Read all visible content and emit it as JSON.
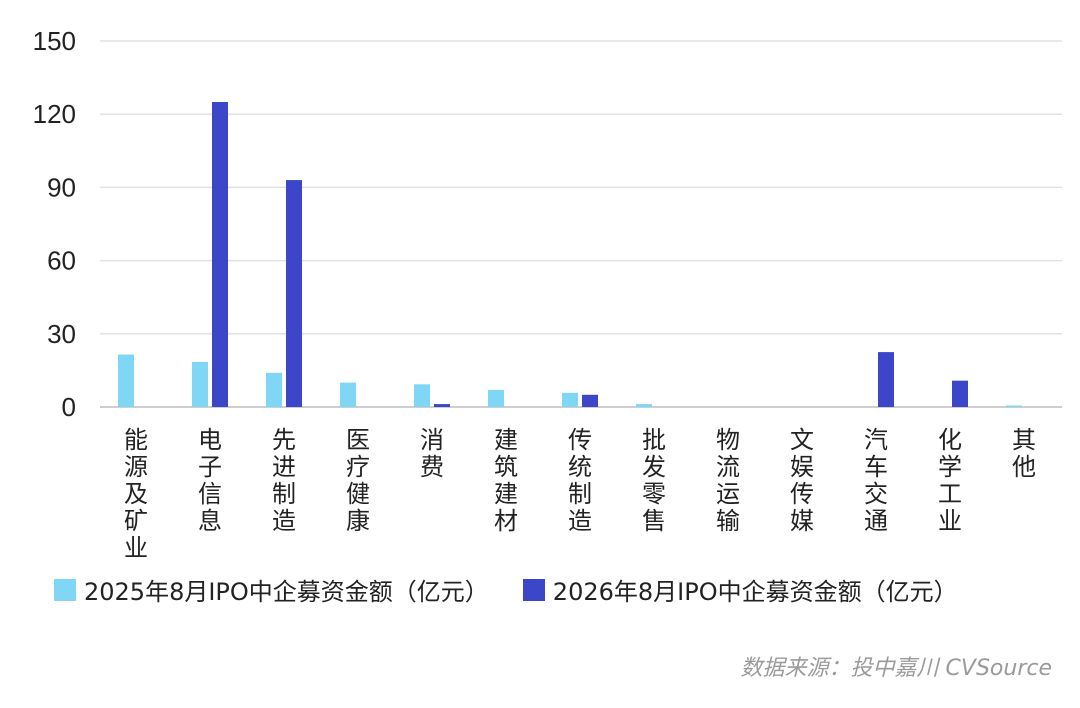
{
  "chart_data": {
    "type": "bar",
    "categories": [
      "能源及矿业",
      "电子信息",
      "先进制造",
      "医疗健康",
      "消费",
      "建筑建材",
      "传统制造",
      "批发零售",
      "物流运输",
      "文娱传媒",
      "汽车交通",
      "化学工业",
      "其他"
    ],
    "series": [
      {
        "name": "2025年8月IPO中企募资金额（亿元）",
        "color": "#7fd6f5",
        "values": [
          21.5,
          18.5,
          14,
          10,
          9.3,
          7,
          5.8,
          1.2,
          0,
          0,
          0,
          0,
          0.6
        ]
      },
      {
        "name": "2026年8月IPO中企募资金额（亿元）",
        "color": "#3b47c8",
        "values": [
          0,
          125,
          93,
          0,
          1.2,
          0,
          5,
          0,
          0,
          0,
          22.5,
          10.8,
          0
        ]
      }
    ],
    "ylim": [
      0,
      150
    ],
    "yticks": [
      0,
      30,
      60,
      90,
      120,
      150
    ],
    "grid": true,
    "legend_position": "bottom-left"
  },
  "source": "数据来源：投中嘉川 CVSource"
}
